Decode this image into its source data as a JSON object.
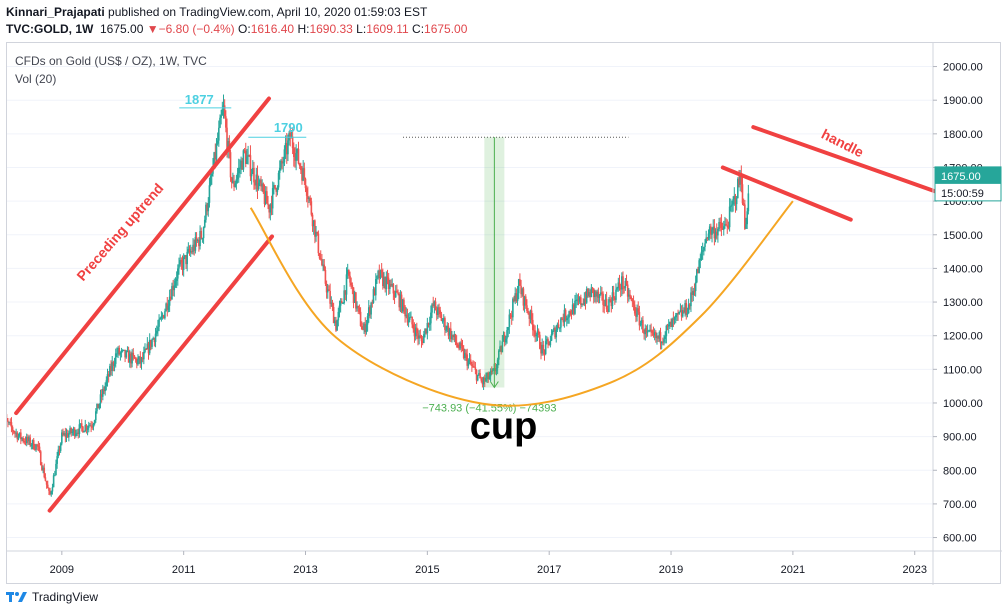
{
  "header": {
    "publisher": "Kinnari_Prajapati",
    "published_text": "published on TradingView.com, April 10, 2020 01:59:03 EST",
    "symbol": "TVC:GOLD, 1W",
    "last": "1675.00",
    "change": "−6.80 (−0.4%)",
    "o_label": "O:",
    "o_value": "1616.40",
    "h_label": "H:",
    "h_value": "1690.33",
    "l_label": "L:",
    "l_value": "1609.11",
    "c_label": "C:",
    "c_value": "1675.00"
  },
  "footer": {
    "brand": "TradingView"
  },
  "colors": {
    "up": "#26a69a",
    "down": "#ef5350",
    "red_line": "#f04141",
    "cup": "#f5a623",
    "label_blue": "#4dd0e1",
    "measure_green": "#4caf50"
  },
  "chart_data": {
    "type": "candlestick",
    "title": "CFDs on Gold (US$ / OZ), 1W, TVC",
    "subtitle": "Vol (20)",
    "x_ticks": [
      "2009",
      "2011",
      "2013",
      "2015",
      "2017",
      "2019",
      "2021",
      "2023"
    ],
    "y_ticks": [
      "600.00",
      "700.00",
      "800.00",
      "900.00",
      "1000.00",
      "1100.00",
      "1200.00",
      "1300.00",
      "1400.00",
      "1500.00",
      "1600.00",
      "1700.00",
      "1800.00",
      "1900.00",
      "2000.00"
    ],
    "ylim": [
      560,
      2070
    ],
    "xlim": [
      2008.1,
      2023.3
    ],
    "price_anchors": [
      [
        2008.0,
        960
      ],
      [
        2008.3,
        900
      ],
      [
        2008.6,
        870
      ],
      [
        2008.8,
        720
      ],
      [
        2009.0,
        900
      ],
      [
        2009.5,
        940
      ],
      [
        2009.9,
        1150
      ],
      [
        2010.3,
        1120
      ],
      [
        2010.6,
        1230
      ],
      [
        2010.9,
        1390
      ],
      [
        2011.3,
        1500
      ],
      [
        2011.65,
        1877
      ],
      [
        2011.8,
        1640
      ],
      [
        2012.0,
        1740
      ],
      [
        2012.4,
        1580
      ],
      [
        2012.75,
        1790
      ],
      [
        2013.0,
        1660
      ],
      [
        2013.3,
        1380
      ],
      [
        2013.5,
        1230
      ],
      [
        2013.7,
        1380
      ],
      [
        2013.95,
        1210
      ],
      [
        2014.2,
        1380
      ],
      [
        2014.5,
        1320
      ],
      [
        2014.9,
        1180
      ],
      [
        2015.1,
        1290
      ],
      [
        2015.5,
        1170
      ],
      [
        2015.9,
        1060
      ],
      [
        2016.1,
        1090
      ],
      [
        2016.5,
        1350
      ],
      [
        2016.9,
        1150
      ],
      [
        2017.2,
        1250
      ],
      [
        2017.7,
        1330
      ],
      [
        2017.95,
        1290
      ],
      [
        2018.2,
        1360
      ],
      [
        2018.6,
        1200
      ],
      [
        2018.8,
        1190
      ],
      [
        2019.3,
        1290
      ],
      [
        2019.6,
        1510
      ],
      [
        2019.9,
        1520
      ],
      [
        2020.05,
        1610
      ],
      [
        2020.15,
        1680
      ],
      [
        2020.22,
        1500
      ],
      [
        2020.28,
        1675
      ]
    ],
    "last_price": "1675.00",
    "countdown": "15:00:59",
    "annotations": {
      "high_1": {
        "label": "1877",
        "price": 1877
      },
      "high_2": {
        "label": "1790",
        "price": 1790
      },
      "dotted_level": 1790,
      "measure": {
        "label": "−743.93 (−41.55%) −74393",
        "from": 1790,
        "to": 1046,
        "x": 2016.1
      },
      "uptrend_label": "Preceding uptrend",
      "handle_label": "handle",
      "cup_label": "cup",
      "uptrend_upper": [
        [
          2008.25,
          970
        ],
        [
          2012.4,
          1905
        ]
      ],
      "uptrend_lower": [
        [
          2008.8,
          680
        ],
        [
          2012.45,
          1495
        ]
      ],
      "handle_short": [
        [
          2019.85,
          1700
        ],
        [
          2021.95,
          1545
        ]
      ],
      "handle_long": [
        [
          2020.35,
          1820
        ],
        [
          2023.4,
          1625
        ]
      ],
      "cup_curve": [
        [
          2012.1,
          1580
        ],
        [
          2013.5,
          1195
        ],
        [
          2015.9,
          998
        ],
        [
          2018.0,
          1060
        ],
        [
          2019.5,
          1260
        ],
        [
          2021.0,
          1600
        ]
      ]
    }
  }
}
